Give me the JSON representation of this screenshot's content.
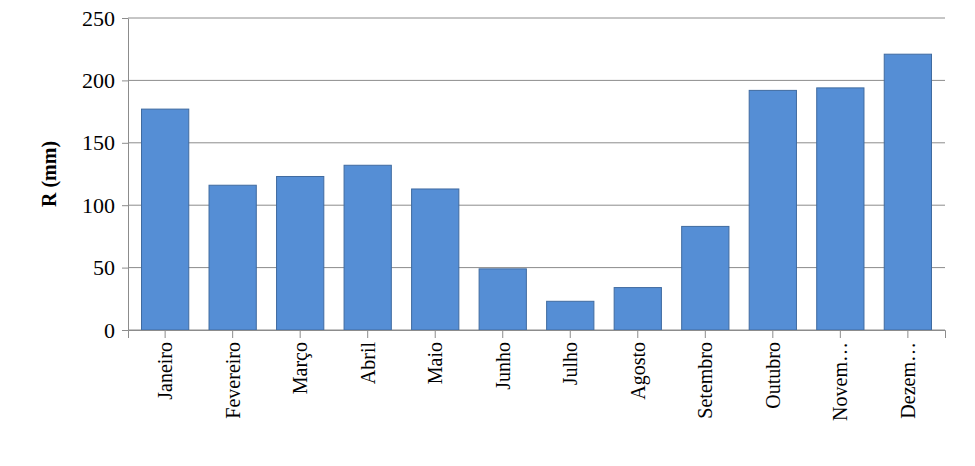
{
  "chart_data": {
    "type": "bar",
    "y_label": "R (mm)",
    "categories": [
      "Janeiro",
      "Fevereiro",
      "Março",
      "Abril",
      "Maio",
      "Junho",
      "Julho",
      "Agosto",
      "Setembro",
      "Outubro",
      "Novem…",
      "Dezem…"
    ],
    "values": [
      177,
      116,
      123,
      132,
      113,
      49,
      23,
      34,
      83,
      192,
      194,
      221
    ],
    "color": "#558ed5",
    "ylim": [
      0,
      250
    ],
    "yticks": [
      0,
      50,
      100,
      150,
      200,
      250
    ],
    "grid": true
  }
}
